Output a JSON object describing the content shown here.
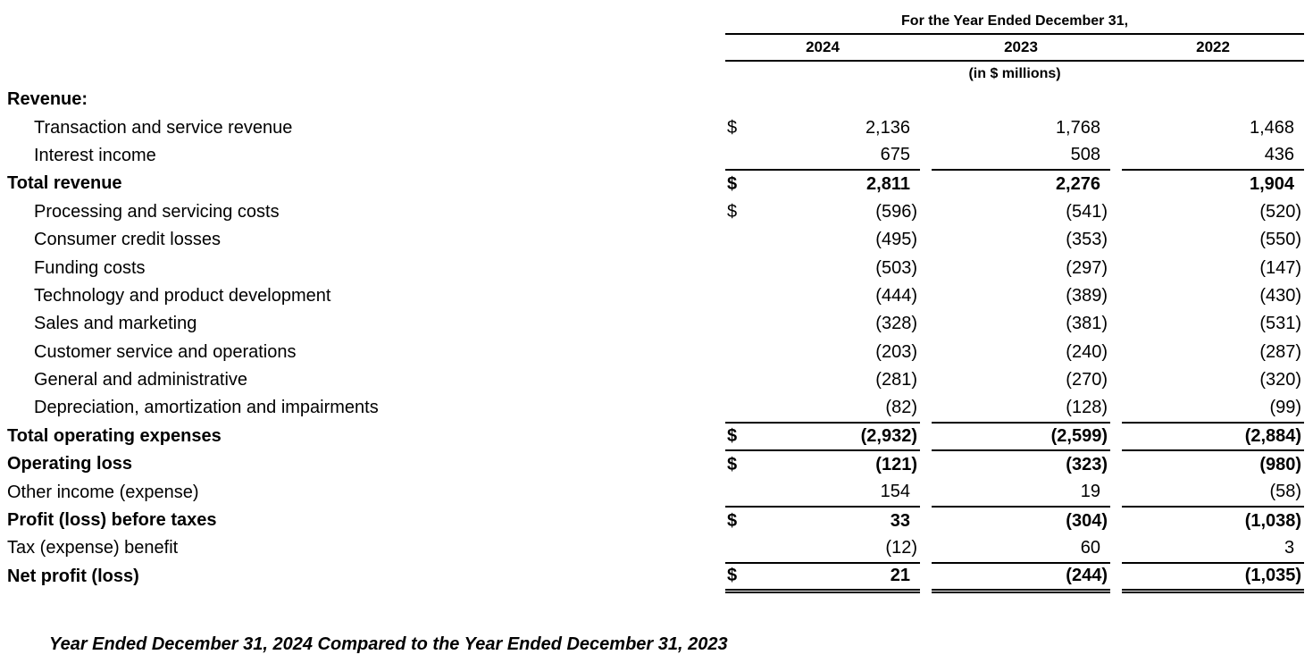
{
  "header": {
    "title": "For the Year Ended December 31,",
    "years": [
      "2024",
      "2023",
      "2022"
    ],
    "units_note": "(in $ millions)"
  },
  "table": {
    "rows": [
      {
        "label": "Revenue:",
        "indent": false,
        "bold": true,
        "dollar": "",
        "v2024": "",
        "v2023": "",
        "v2022": "",
        "rule": "none"
      },
      {
        "label": "Transaction and service revenue",
        "indent": true,
        "bold": false,
        "dollar": "$",
        "v2024": "2,136",
        "v2023": "1,768",
        "v2022": "1,468",
        "rule": "none"
      },
      {
        "label": "Interest income",
        "indent": true,
        "bold": false,
        "dollar": "",
        "v2024": "675",
        "v2023": "508",
        "v2022": "436",
        "rule": "single"
      },
      {
        "label": "Total revenue",
        "indent": false,
        "bold": true,
        "dollar": "$",
        "v2024": "2,811",
        "v2023": "2,276",
        "v2022": "1,904",
        "rule": "none"
      },
      {
        "label": "Processing and servicing costs",
        "indent": true,
        "bold": false,
        "dollar": "$",
        "v2024": "(596)",
        "v2023": "(541)",
        "v2022": "(520)",
        "rule": "none"
      },
      {
        "label": "Consumer credit losses",
        "indent": true,
        "bold": false,
        "dollar": "",
        "v2024": "(495)",
        "v2023": "(353)",
        "v2022": "(550)",
        "rule": "none"
      },
      {
        "label": "Funding costs",
        "indent": true,
        "bold": false,
        "dollar": "",
        "v2024": "(503)",
        "v2023": "(297)",
        "v2022": "(147)",
        "rule": "none"
      },
      {
        "label": "Technology and product development",
        "indent": true,
        "bold": false,
        "dollar": "",
        "v2024": "(444)",
        "v2023": "(389)",
        "v2022": "(430)",
        "rule": "none"
      },
      {
        "label": "Sales and marketing",
        "indent": true,
        "bold": false,
        "dollar": "",
        "v2024": "(328)",
        "v2023": "(381)",
        "v2022": "(531)",
        "rule": "none"
      },
      {
        "label": "Customer service and operations",
        "indent": true,
        "bold": false,
        "dollar": "",
        "v2024": "(203)",
        "v2023": "(240)",
        "v2022": "(287)",
        "rule": "none"
      },
      {
        "label": "General and administrative",
        "indent": true,
        "bold": false,
        "dollar": "",
        "v2024": "(281)",
        "v2023": "(270)",
        "v2022": "(320)",
        "rule": "none"
      },
      {
        "label": "Depreciation, amortization and impairments",
        "indent": true,
        "bold": false,
        "dollar": "",
        "v2024": "(82)",
        "v2023": "(128)",
        "v2022": "(99)",
        "rule": "single"
      },
      {
        "label": "Total operating expenses",
        "indent": false,
        "bold": true,
        "dollar": "$",
        "v2024": "(2,932)",
        "v2023": "(2,599)",
        "v2022": "(2,884)",
        "rule": "single"
      },
      {
        "label": "Operating loss",
        "indent": false,
        "bold": true,
        "dollar": "$",
        "v2024": "(121)",
        "v2023": "(323)",
        "v2022": "(980)",
        "rule": "none"
      },
      {
        "label": "Other income (expense)",
        "indent": false,
        "bold": false,
        "dollar": "",
        "v2024": "154",
        "v2023": "19",
        "v2022": "(58)",
        "rule": "single"
      },
      {
        "label": "Profit (loss) before taxes",
        "indent": false,
        "bold": true,
        "dollar": "$",
        "v2024": "33",
        "v2023": "(304)",
        "v2022": "(1,038)",
        "rule": "none"
      },
      {
        "label": "Tax (expense) benefit",
        "indent": false,
        "bold": false,
        "dollar": "",
        "v2024": "(12)",
        "v2023": "60",
        "v2022": "3",
        "rule": "single"
      },
      {
        "label": "Net profit (loss)",
        "indent": false,
        "bold": true,
        "dollar": "$",
        "v2024": "21",
        "v2023": "(244)",
        "v2022": "(1,035)",
        "rule": "double"
      }
    ]
  },
  "footer": {
    "caption": "Year Ended December 31, 2024 Compared to the Year Ended December 31, 2023"
  }
}
